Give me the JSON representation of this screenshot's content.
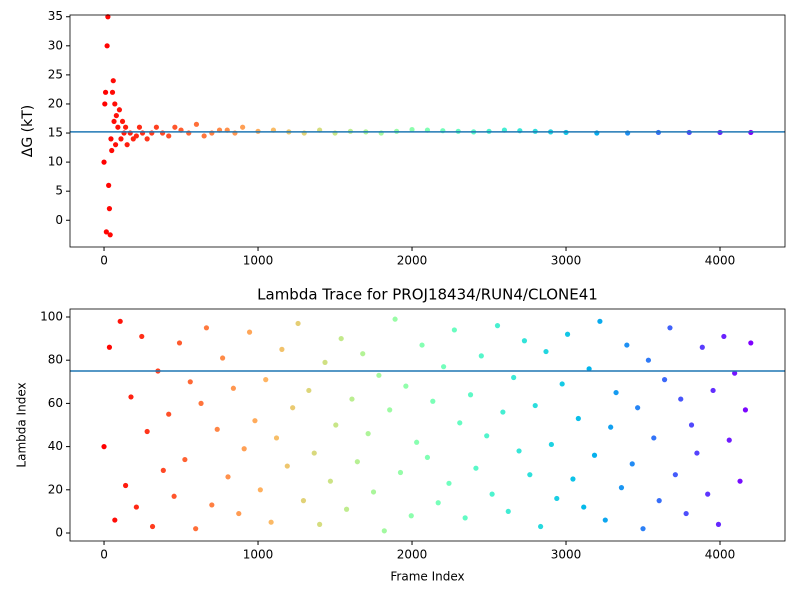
{
  "chart_data": [
    {
      "type": "scatter",
      "ylabel": "ΔG (kT)",
      "xlim": [
        -221,
        4422
      ],
      "xticks": [
        0,
        1000,
        2000,
        3000,
        4000
      ],
      "ylim": [
        -4.6,
        35.3
      ],
      "yticks": [
        0,
        5,
        10,
        15,
        20,
        25,
        30,
        35
      ],
      "colormap": "rainbow_r",
      "hline": 15.2,
      "hline_color": "#1f77b4",
      "x": [
        0,
        5,
        10,
        15,
        20,
        25,
        30,
        35,
        40,
        45,
        50,
        55,
        60,
        65,
        70,
        75,
        80,
        90,
        100,
        110,
        120,
        130,
        140,
        150,
        170,
        190,
        210,
        230,
        250,
        280,
        310,
        340,
        380,
        420,
        460,
        500,
        550,
        600,
        650,
        700,
        750,
        800,
        850,
        900,
        1000,
        1100,
        1200,
        1300,
        1400,
        1500,
        1600,
        1700,
        1800,
        1900,
        2000,
        2100,
        2200,
        2300,
        2400,
        2500,
        2600,
        2700,
        2800,
        2900,
        3000,
        3200,
        3400,
        3600,
        3800,
        4000,
        4200
      ],
      "values": [
        10,
        20,
        22,
        -2,
        30,
        35,
        6,
        2,
        -2.5,
        14,
        12,
        22,
        24,
        17,
        20,
        13,
        18,
        16,
        19,
        14,
        17,
        15,
        16,
        13,
        15,
        14,
        14.5,
        16,
        15,
        14,
        15,
        16,
        15,
        14.5,
        16,
        15.5,
        15,
        16.5,
        14.5,
        15,
        15.5,
        15.5,
        15,
        16,
        15.3,
        15.5,
        15.2,
        15,
        15.5,
        15,
        15.3,
        15.2,
        15,
        15.3,
        15.6,
        15.5,
        15.4,
        15.3,
        15.2,
        15.3,
        15.5,
        15.4,
        15.3,
        15.2,
        15.1,
        15,
        15,
        15.1,
        15.1,
        15.1,
        15.1
      ]
    },
    {
      "type": "scatter",
      "title": "Lambda Trace for PROJ18434/RUN4/CLONE41",
      "xlabel": "Frame Index",
      "ylabel": "Lambda Index",
      "xlim": [
        -221,
        4422
      ],
      "xticks": [
        0,
        1000,
        2000,
        3000,
        4000
      ],
      "ylim": [
        -3.7,
        103.7
      ],
      "yticks": [
        0,
        20,
        40,
        60,
        80,
        100
      ],
      "colormap": "rainbow_r",
      "hline": 75,
      "hline_color": "#1f77b4",
      "x": [
        0,
        35,
        70,
        105,
        140,
        175,
        210,
        245,
        280,
        315,
        350,
        385,
        420,
        455,
        490,
        525,
        560,
        595,
        630,
        665,
        700,
        735,
        770,
        805,
        840,
        875,
        910,
        945,
        980,
        1015,
        1050,
        1085,
        1120,
        1155,
        1190,
        1225,
        1260,
        1295,
        1330,
        1365,
        1400,
        1435,
        1470,
        1505,
        1540,
        1575,
        1610,
        1645,
        1680,
        1715,
        1750,
        1785,
        1820,
        1855,
        1890,
        1925,
        1960,
        1995,
        2030,
        2065,
        2100,
        2135,
        2170,
        2205,
        2240,
        2275,
        2310,
        2345,
        2380,
        2415,
        2450,
        2485,
        2520,
        2555,
        2590,
        2625,
        2660,
        2695,
        2730,
        2765,
        2800,
        2835,
        2870,
        2905,
        2940,
        2975,
        3010,
        3045,
        3080,
        3115,
        3150,
        3185,
        3220,
        3255,
        3290,
        3325,
        3360,
        3395,
        3430,
        3465,
        3500,
        3535,
        3570,
        3605,
        3640,
        3675,
        3710,
        3745,
        3780,
        3815,
        3850,
        3885,
        3920,
        3955,
        3990,
        4025,
        4060,
        4095,
        4130,
        4165,
        4200
      ],
      "values": [
        40,
        86,
        6,
        98,
        22,
        63,
        12,
        91,
        47,
        3,
        75,
        29,
        55,
        17,
        88,
        34,
        70,
        2,
        60,
        95,
        13,
        48,
        81,
        26,
        67,
        9,
        39,
        93,
        52,
        20,
        71,
        5,
        44,
        85,
        31,
        58,
        97,
        15,
        66,
        37,
        4,
        79,
        24,
        50,
        90,
        11,
        62,
        33,
        83,
        46,
        19,
        73,
        1,
        57,
        99,
        28,
        68,
        8,
        42,
        87,
        35,
        61,
        14,
        77,
        23,
        94,
        51,
        7,
        64,
        30,
        82,
        45,
        18,
        96,
        56,
        10,
        72,
        38,
        89,
        27,
        59,
        3,
        84,
        41,
        16,
        69,
        92,
        25,
        53,
        12,
        76,
        36,
        98,
        6,
        49,
        65,
        21,
        87,
        32,
        58,
        2,
        80,
        44,
        15,
        71,
        95,
        27,
        62,
        9,
        50,
        37,
        86,
        18,
        66,
        4,
        91,
        43,
        74,
        24,
        57,
        88
      ]
    }
  ]
}
